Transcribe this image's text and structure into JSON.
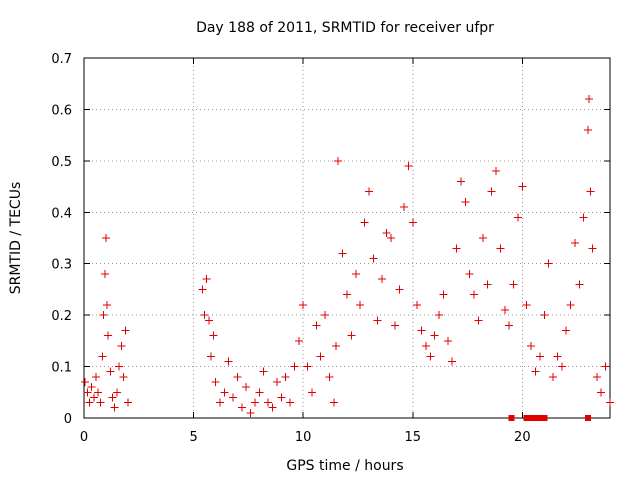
{
  "chart_data": {
    "type": "scatter",
    "title": "Day 188 of 2011, SRMTID for receiver ufpr",
    "xlabel": "GPS time / hours",
    "ylabel": "SRMTID / TECUs",
    "xlim": [
      0,
      24
    ],
    "ylim": [
      0,
      0.7
    ],
    "x_ticks": [
      "0",
      "5",
      "10",
      "15",
      "20"
    ],
    "y_ticks": [
      "0",
      "0.1",
      "0.2",
      "0.3",
      "0.4",
      "0.5",
      "0.6",
      "0.7"
    ],
    "grid": true,
    "legend": "none",
    "series": [
      {
        "name": "SRMTID",
        "color": "#e00000",
        "marker": "plus",
        "points": [
          [
            0.05,
            0.07
          ],
          [
            0.15,
            0.05
          ],
          [
            0.25,
            0.03
          ],
          [
            0.35,
            0.06
          ],
          [
            0.45,
            0.04
          ],
          [
            0.55,
            0.08
          ],
          [
            0.65,
            0.05
          ],
          [
            0.75,
            0.03
          ],
          [
            0.85,
            0.12
          ],
          [
            0.9,
            0.2
          ],
          [
            0.95,
            0.28
          ],
          [
            1.0,
            0.35
          ],
          [
            1.05,
            0.22
          ],
          [
            1.1,
            0.16
          ],
          [
            1.2,
            0.09
          ],
          [
            1.3,
            0.04
          ],
          [
            1.4,
            0.02
          ],
          [
            1.5,
            0.05
          ],
          [
            1.6,
            0.1
          ],
          [
            1.7,
            0.14
          ],
          [
            1.8,
            0.08
          ],
          [
            1.9,
            0.17
          ],
          [
            2.0,
            0.03
          ],
          [
            5.4,
            0.25
          ],
          [
            5.5,
            0.2
          ],
          [
            5.6,
            0.27
          ],
          [
            5.7,
            0.19
          ],
          [
            5.8,
            0.12
          ],
          [
            5.9,
            0.16
          ],
          [
            6.0,
            0.07
          ],
          [
            6.2,
            0.03
          ],
          [
            6.4,
            0.05
          ],
          [
            6.6,
            0.11
          ],
          [
            6.8,
            0.04
          ],
          [
            7.0,
            0.08
          ],
          [
            7.2,
            0.02
          ],
          [
            7.4,
            0.06
          ],
          [
            7.6,
            0.01
          ],
          [
            7.8,
            0.03
          ],
          [
            8.0,
            0.05
          ],
          [
            8.2,
            0.09
          ],
          [
            8.4,
            0.03
          ],
          [
            8.6,
            0.02
          ],
          [
            8.8,
            0.07
          ],
          [
            9.0,
            0.04
          ],
          [
            9.2,
            0.08
          ],
          [
            9.4,
            0.03
          ],
          [
            9.6,
            0.1
          ],
          [
            9.8,
            0.15
          ],
          [
            10.0,
            0.22
          ],
          [
            10.2,
            0.1
          ],
          [
            10.4,
            0.05
          ],
          [
            10.6,
            0.18
          ],
          [
            10.8,
            0.12
          ],
          [
            11.0,
            0.2
          ],
          [
            11.2,
            0.08
          ],
          [
            11.4,
            0.03
          ],
          [
            11.5,
            0.14
          ],
          [
            11.6,
            0.5
          ],
          [
            11.8,
            0.32
          ],
          [
            12.0,
            0.24
          ],
          [
            12.2,
            0.16
          ],
          [
            12.4,
            0.28
          ],
          [
            12.6,
            0.22
          ],
          [
            12.8,
            0.38
          ],
          [
            13.0,
            0.44
          ],
          [
            13.2,
            0.31
          ],
          [
            13.4,
            0.19
          ],
          [
            13.6,
            0.27
          ],
          [
            13.8,
            0.36
          ],
          [
            14.0,
            0.35
          ],
          [
            14.2,
            0.18
          ],
          [
            14.4,
            0.25
          ],
          [
            14.6,
            0.41
          ],
          [
            14.8,
            0.49
          ],
          [
            15.0,
            0.38
          ],
          [
            15.2,
            0.22
          ],
          [
            15.4,
            0.17
          ],
          [
            15.6,
            0.14
          ],
          [
            15.8,
            0.12
          ],
          [
            16.0,
            0.16
          ],
          [
            16.2,
            0.2
          ],
          [
            16.4,
            0.24
          ],
          [
            16.6,
            0.15
          ],
          [
            16.8,
            0.11
          ],
          [
            17.0,
            0.33
          ],
          [
            17.2,
            0.46
          ],
          [
            17.4,
            0.42
          ],
          [
            17.6,
            0.28
          ],
          [
            17.8,
            0.24
          ],
          [
            18.0,
            0.19
          ],
          [
            18.2,
            0.35
          ],
          [
            18.4,
            0.26
          ],
          [
            18.6,
            0.44
          ],
          [
            18.8,
            0.48
          ],
          [
            19.0,
            0.33
          ],
          [
            19.2,
            0.21
          ],
          [
            19.4,
            0.18
          ],
          [
            19.6,
            0.26
          ],
          [
            19.8,
            0.39
          ],
          [
            20.0,
            0.45
          ],
          [
            20.2,
            0.22
          ],
          [
            20.4,
            0.14
          ],
          [
            20.6,
            0.09
          ],
          [
            20.8,
            0.12
          ],
          [
            21.0,
            0.2
          ],
          [
            21.2,
            0.3
          ],
          [
            21.4,
            0.08
          ],
          [
            21.6,
            0.12
          ],
          [
            21.8,
            0.1
          ],
          [
            22.0,
            0.17
          ],
          [
            22.2,
            0.22
          ],
          [
            22.4,
            0.34
          ],
          [
            22.6,
            0.26
          ],
          [
            22.8,
            0.39
          ],
          [
            23.0,
            0.56
          ],
          [
            23.05,
            0.62
          ],
          [
            23.1,
            0.44
          ],
          [
            23.2,
            0.33
          ],
          [
            23.4,
            0.08
          ],
          [
            23.6,
            0.05
          ],
          [
            23.8,
            0.1
          ],
          [
            24.0,
            0.03
          ]
        ]
      },
      {
        "name": "Zero markers",
        "color": "#e00000",
        "marker": "square",
        "points": [
          [
            19.5,
            0
          ],
          [
            20.2,
            0
          ],
          [
            20.4,
            0
          ],
          [
            20.6,
            0
          ],
          [
            20.8,
            0
          ],
          [
            21.0,
            0
          ],
          [
            23.0,
            0
          ]
        ]
      }
    ]
  }
}
